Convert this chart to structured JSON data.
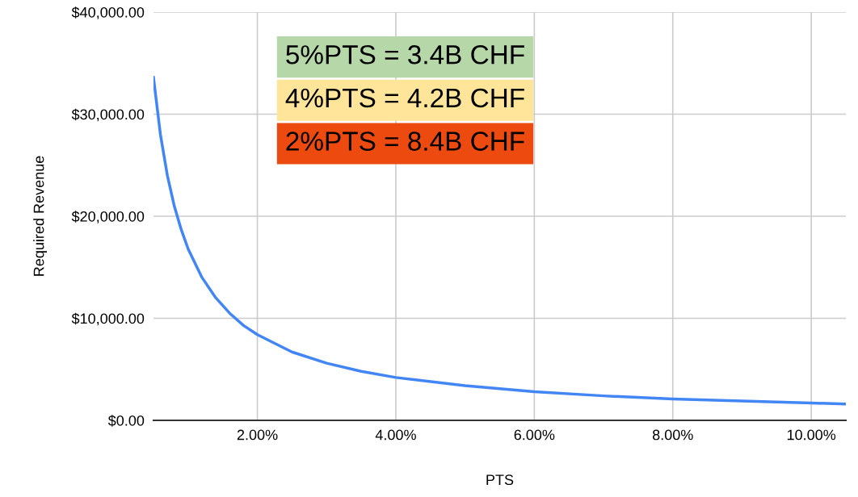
{
  "chart_data": {
    "type": "line",
    "xlabel": "PTS",
    "ylabel": "Required Revenue",
    "x": [
      0.5,
      0.6,
      0.7,
      0.8,
      0.9,
      1.0,
      1.2,
      1.4,
      1.6,
      1.8,
      2.0,
      2.5,
      3.0,
      3.5,
      4.0,
      5.0,
      6.0,
      7.0,
      8.0,
      9.0,
      10.0,
      10.5
    ],
    "series": [
      {
        "color": "#4285f4",
        "values": [
          33600,
          28000,
          24000,
          21000,
          18700,
          16800,
          14000,
          12000,
          10500,
          9300,
          8400,
          6700,
          5600,
          4800,
          4200,
          3400,
          2800,
          2400,
          2100,
          1900,
          1700,
          1600
        ]
      }
    ],
    "xlim": [
      0.5,
      10.5
    ],
    "ylim": [
      0,
      40000
    ],
    "xticks": [
      {
        "value": 2,
        "label": "2.00%"
      },
      {
        "value": 4,
        "label": "4.00%"
      },
      {
        "value": 6,
        "label": "6.00%"
      },
      {
        "value": 8,
        "label": "8.00%"
      },
      {
        "value": 10,
        "label": "10.00%"
      }
    ],
    "yticks": [
      {
        "value": 0,
        "label": "$0.00"
      },
      {
        "value": 10000,
        "label": "$10,000.00"
      },
      {
        "value": 20000,
        "label": "$20,000.00"
      },
      {
        "value": 30000,
        "label": "$30,000.00"
      },
      {
        "value": 40000,
        "label": "$40,000.00"
      }
    ],
    "annotations": [
      "5%PTS = 3.4B CHF",
      "4%PTS = 4.2B CHF",
      "2%PTS = 8.4B CHF"
    ],
    "grid": true,
    "marker": "none",
    "line_style": "solid"
  }
}
